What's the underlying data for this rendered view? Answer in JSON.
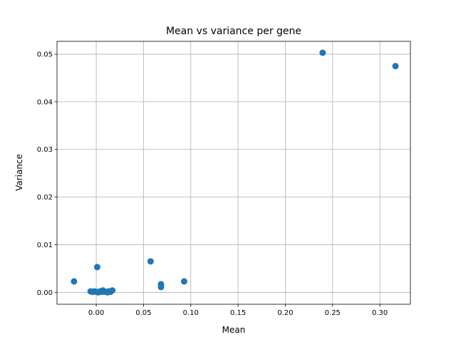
{
  "chart_data": {
    "type": "scatter",
    "title": "Mean vs variance per gene",
    "xlabel": "Mean",
    "ylabel": "Variance",
    "xlim": [
      -0.0415,
      0.3323
    ],
    "ylim": [
      -0.0025,
      0.0527
    ],
    "xticks": [
      0.0,
      0.05,
      0.1,
      0.15,
      0.2,
      0.25,
      0.3
    ],
    "xtick_labels": [
      "0.00",
      "0.05",
      "0.10",
      "0.15",
      "0.20",
      "0.25",
      "0.30"
    ],
    "yticks": [
      0.0,
      0.01,
      0.02,
      0.03,
      0.04,
      0.05
    ],
    "ytick_labels": [
      "0.00",
      "0.01",
      "0.02",
      "0.03",
      "0.04",
      "0.05"
    ],
    "grid": true,
    "color": "#1f77b4",
    "points": [
      {
        "x": -0.0235,
        "y": 0.0023
      },
      {
        "x": -0.006,
        "y": 0.0002
      },
      {
        "x": -0.004,
        "y": 0.0001
      },
      {
        "x": -0.002,
        "y": 0.0002
      },
      {
        "x": 0.0,
        "y": 0.0001
      },
      {
        "x": 0.001,
        "y": 0.0053
      },
      {
        "x": 0.002,
        "y": 0.0
      },
      {
        "x": 0.003,
        "y": 0.0001
      },
      {
        "x": 0.004,
        "y": 0.0002
      },
      {
        "x": 0.006,
        "y": 0.0001
      },
      {
        "x": 0.007,
        "y": 0.0004
      },
      {
        "x": 0.008,
        "y": 0.0002
      },
      {
        "x": 0.01,
        "y": 0.0001
      },
      {
        "x": 0.012,
        "y": 0.0
      },
      {
        "x": 0.013,
        "y": 0.0002
      },
      {
        "x": 0.015,
        "y": 0.0001
      },
      {
        "x": 0.017,
        "y": 0.0004
      },
      {
        "x": 0.0575,
        "y": 0.0065
      },
      {
        "x": 0.0685,
        "y": 0.0017
      },
      {
        "x": 0.0685,
        "y": 0.0011
      },
      {
        "x": 0.093,
        "y": 0.0023
      },
      {
        "x": 0.2395,
        "y": 0.0503
      },
      {
        "x": 0.3165,
        "y": 0.0475
      }
    ]
  }
}
